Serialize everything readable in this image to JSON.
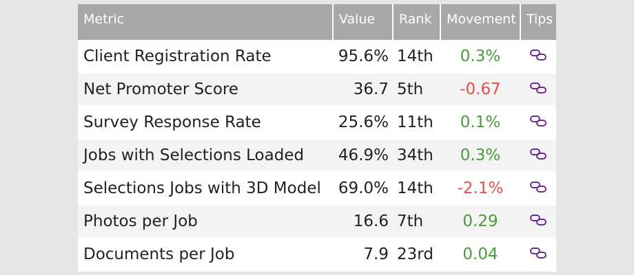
{
  "columns": {
    "metric": "Metric",
    "value": "Value",
    "rank": "Rank",
    "movement": "Movement",
    "tips": "Tips"
  },
  "colors": {
    "header_bg": "#a8a8a8",
    "positive": "#4a9a3c",
    "negative": "#e0504e",
    "icon": "#6a2c8e"
  },
  "rows": [
    {
      "metric": "Client Registration Rate",
      "value": "95.6%",
      "rank": "14th",
      "movement": "0.3%",
      "direction": "up",
      "tip_icon": "link-icon"
    },
    {
      "metric": "Net Promoter Score",
      "value": "36.7",
      "rank": "5th",
      "movement": "-0.67",
      "direction": "down",
      "tip_icon": "link-icon"
    },
    {
      "metric": "Survey Response Rate",
      "value": "25.6%",
      "rank": "11th",
      "movement": "0.1%",
      "direction": "up",
      "tip_icon": "link-icon"
    },
    {
      "metric": "Jobs with Selections Loaded",
      "value": "46.9%",
      "rank": "34th",
      "movement": "0.3%",
      "direction": "up",
      "tip_icon": "link-icon"
    },
    {
      "metric": "Selections Jobs with 3D Model",
      "value": "69.0%",
      "rank": "14th",
      "movement": "-2.1%",
      "direction": "down",
      "tip_icon": "link-icon"
    },
    {
      "metric": "Photos per Job",
      "value": "16.6",
      "rank": "7th",
      "movement": "0.29",
      "direction": "up",
      "tip_icon": "link-icon"
    },
    {
      "metric": "Documents per Job",
      "value": "7.9",
      "rank": "23rd",
      "movement": "0.04",
      "direction": "up",
      "tip_icon": "link-icon"
    }
  ]
}
